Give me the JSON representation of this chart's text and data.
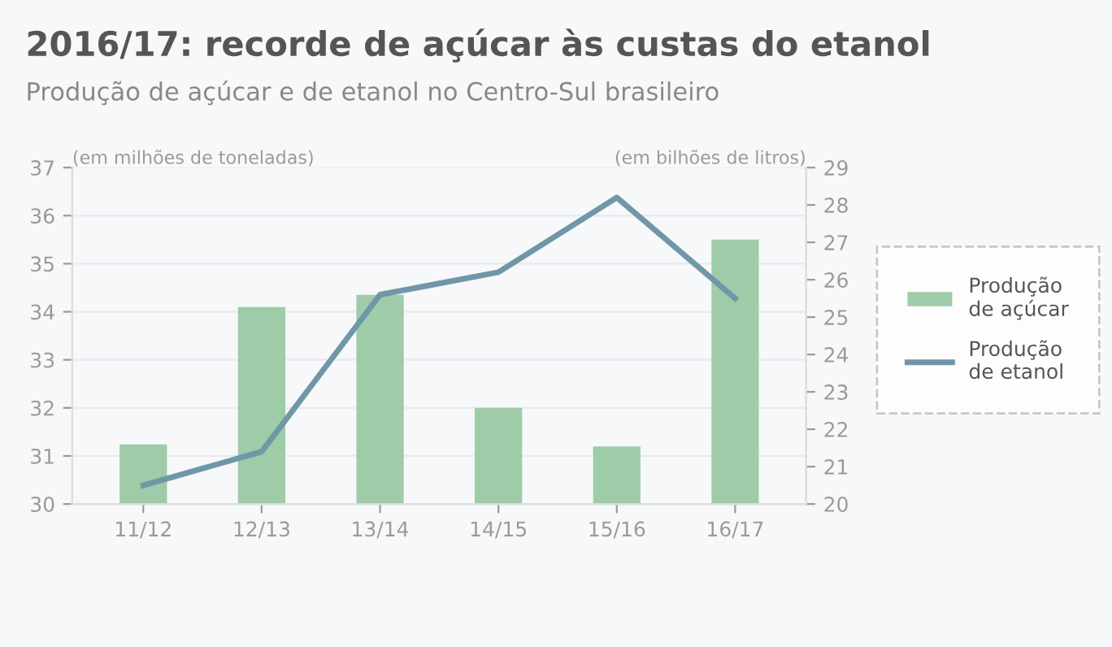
{
  "chart_data": {
    "type": "bar",
    "title": "2016/17: recorde de açúcar às custas do etanol",
    "subtitle": "Produção de açúcar e de etanol no Centro-Sul brasileiro",
    "ylabel": "(em milhões de toneladas)",
    "y2label": "(em bilhões de litros)",
    "categories": [
      "11/12",
      "12/13",
      "13/14",
      "14/15",
      "15/16",
      "16/17"
    ],
    "series": [
      {
        "name": "Produção\nde açúcar",
        "color": "#9ecba8",
        "values": [
          31.24,
          34.1,
          34.35,
          32.0,
          31.2,
          35.5
        ]
      },
      {
        "name": "Produção\nde etanol",
        "type": "line",
        "axis": "y2",
        "color": "#7097a8",
        "values": [
          20.5,
          21.4,
          25.6,
          26.2,
          28.2,
          25.5
        ]
      }
    ],
    "ylim": [
      30,
      37
    ],
    "yticks": [
      30,
      31,
      32,
      33,
      34,
      35,
      36,
      37
    ],
    "y2lim": [
      20,
      29
    ],
    "y2ticks": [
      20,
      21,
      22,
      23,
      24,
      25,
      26,
      27,
      28,
      29
    ],
    "grid": "y",
    "legend": "right",
    "marker": "none",
    "line_style": "solid"
  }
}
